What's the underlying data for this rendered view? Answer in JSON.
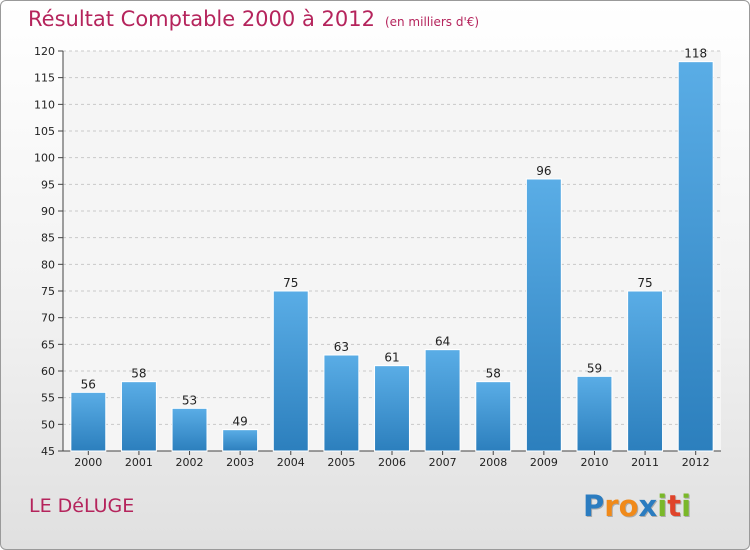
{
  "chart_data": {
    "type": "bar",
    "title": "Résultat Comptable 2000 à 2012",
    "subtitle": "(en milliers d'€)",
    "categories": [
      "2000",
      "2001",
      "2002",
      "2003",
      "2004",
      "2005",
      "2006",
      "2007",
      "2008",
      "2009",
      "2010",
      "2011",
      "2012"
    ],
    "values": [
      56,
      58,
      53,
      49,
      75,
      63,
      61,
      64,
      58,
      96,
      59,
      75,
      118
    ],
    "ylim": [
      45,
      120
    ],
    "yticks": [
      45,
      50,
      55,
      60,
      65,
      70,
      75,
      80,
      85,
      90,
      95,
      100,
      105,
      110,
      115,
      120
    ],
    "xlabel": "",
    "ylabel": "",
    "grid": true,
    "bar_color_top": "#5aade6",
    "bar_color_bottom": "#2c7fbd"
  },
  "commune": "LE DéLUGE",
  "logo": {
    "letters": [
      "P",
      "r",
      "o",
      "x",
      "i",
      "t",
      "i"
    ],
    "colors": [
      "#2b7cc0",
      "#f08a1a",
      "#f08a1a",
      "#2b7cc0",
      "#7ab829",
      "#e0442b",
      "#7ab829"
    ]
  },
  "colors": {
    "title": "#b5245c"
  }
}
